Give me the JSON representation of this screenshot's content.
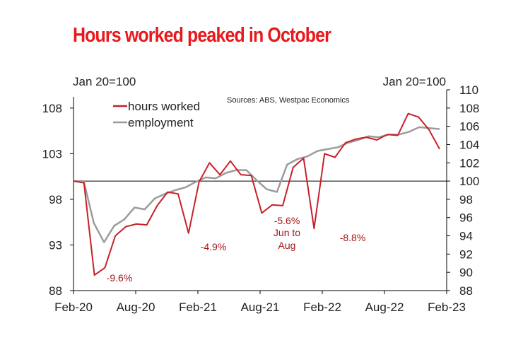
{
  "chart_data": {
    "type": "line",
    "title": "Hours worked peaked in October",
    "source": "Sources: ABS, Westpac Economics",
    "left_axis_label": "Jan 20=100",
    "right_axis_label": "Jan 20=100",
    "ylim_left": [
      88,
      110
    ],
    "left_ticks": [
      88,
      93,
      98,
      103,
      108
    ],
    "ylim_right": [
      88,
      110
    ],
    "right_ticks": [
      88,
      90,
      92,
      94,
      96,
      98,
      100,
      102,
      104,
      106,
      108,
      110
    ],
    "reference_line": 100,
    "x_tick_labels": [
      "Feb-20",
      "Aug-20",
      "Feb-21",
      "Aug-21",
      "Feb-22",
      "Aug-22",
      "Feb-23"
    ],
    "x_start": "Jan-20",
    "legend_position": "top-left",
    "grid": false,
    "series": [
      {
        "name": "hours worked",
        "color": "#c8202a",
        "values": [
          100.0,
          99.8,
          89.7,
          90.5,
          94.0,
          95.0,
          95.3,
          95.2,
          97.3,
          98.8,
          98.6,
          94.3,
          99.9,
          102.0,
          100.7,
          102.2,
          100.7,
          100.6,
          96.5,
          97.4,
          97.3,
          101.5,
          102.5,
          94.8,
          103.0,
          102.6,
          104.2,
          104.6,
          104.8,
          104.5,
          105.1,
          105.0,
          107.4,
          107.0,
          105.6,
          103.5
        ]
      },
      {
        "name": "employment",
        "color": "#9c9c9c",
        "values": [
          100.0,
          100.0,
          95.4,
          93.3,
          95.1,
          95.8,
          97.1,
          96.9,
          98.1,
          98.6,
          99.0,
          99.3,
          99.9,
          100.4,
          100.3,
          100.9,
          101.2,
          101.2,
          100.1,
          99.1,
          98.8,
          101.8,
          102.4,
          102.7,
          103.3,
          103.5,
          103.7,
          104.2,
          104.5,
          104.9,
          104.8,
          105.1,
          105.1,
          105.4,
          105.9,
          105.8,
          105.7
        ]
      }
    ],
    "annotations": [
      "-9.6%",
      "-4.9%",
      "-5.6%",
      "Jun to",
      "Aug",
      "-8.8%"
    ]
  }
}
